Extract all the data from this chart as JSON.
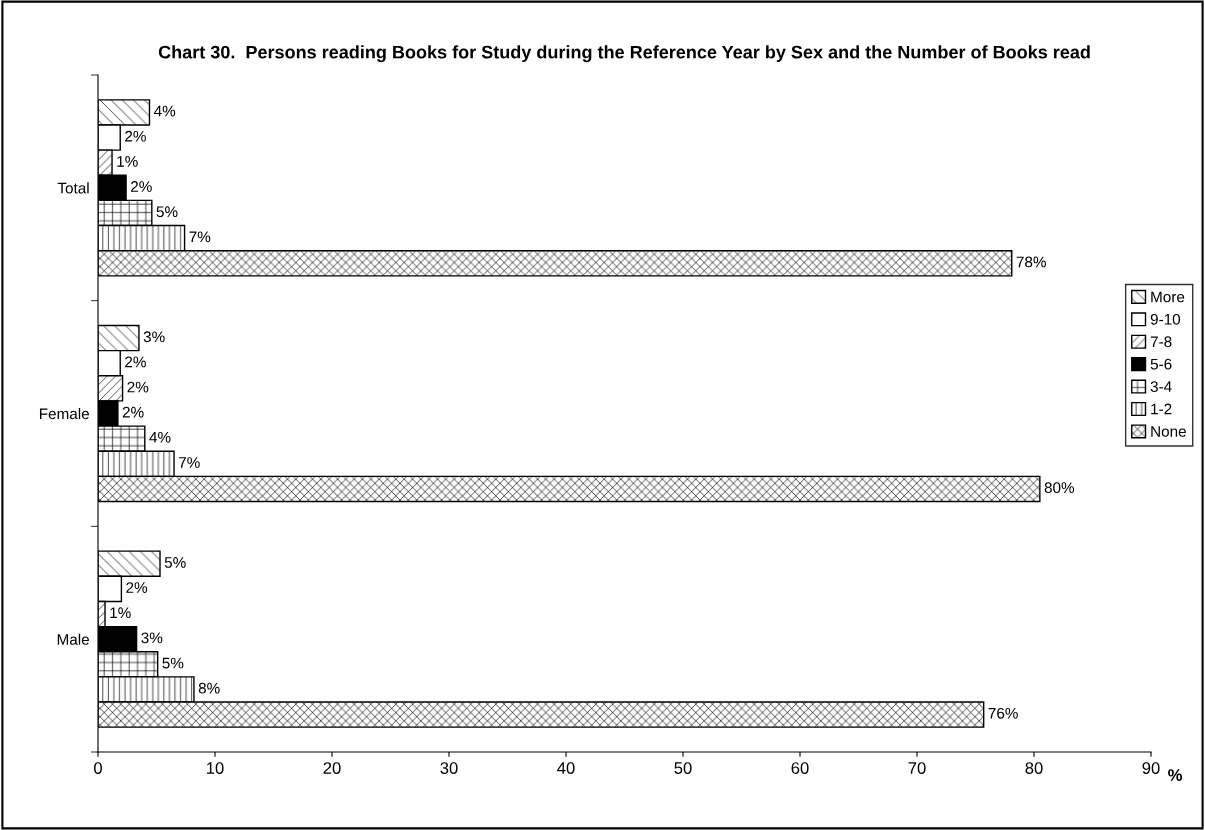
{
  "chart_data": {
    "type": "bar",
    "orientation": "horizontal",
    "title": "Chart 30.  Persons reading Books for Study during the Reference Year by Sex and the Number of Books read",
    "xlabel": "%",
    "categories": [
      "Total",
      "Female",
      "Male"
    ],
    "series": [
      {
        "name": "More",
        "color": "#000000",
        "values": [
          4.4,
          3.5,
          5.3
        ],
        "value_labels": [
          "4%",
          "3%",
          "5%"
        ]
      },
      {
        "name": "9-10",
        "color": "#ffffff",
        "values": [
          1.9,
          1.9,
          2.0
        ],
        "value_labels": [
          "2%",
          "2%",
          "2%"
        ]
      },
      {
        "name": "7-8",
        "color": "#000000",
        "values": [
          1.2,
          2.1,
          0.6
        ],
        "value_labels": [
          "1%",
          "2%",
          "1%"
        ]
      },
      {
        "name": "5-6",
        "color": "#000000",
        "values": [
          2.4,
          1.7,
          3.3
        ],
        "value_labels": [
          "2%",
          "2%",
          "3%"
        ]
      },
      {
        "name": "3-4",
        "color": "#000000",
        "values": [
          4.6,
          4.0,
          5.1
        ],
        "value_labels": [
          "5%",
          "4%",
          "5%"
        ]
      },
      {
        "name": "1-2",
        "color": "#000000",
        "values": [
          7.4,
          6.5,
          8.2
        ],
        "value_labels": [
          "7%",
          "7%",
          "8%"
        ]
      },
      {
        "name": "None",
        "color": "#000000",
        "values": [
          78.1,
          80.5,
          75.7
        ],
        "value_labels": [
          "78%",
          "80%",
          "76%"
        ]
      }
    ],
    "xlim": [
      0,
      90
    ],
    "xticks": [
      0,
      10,
      20,
      30,
      40,
      50,
      60,
      70,
      80,
      90
    ],
    "grid": false,
    "legend": "right"
  }
}
